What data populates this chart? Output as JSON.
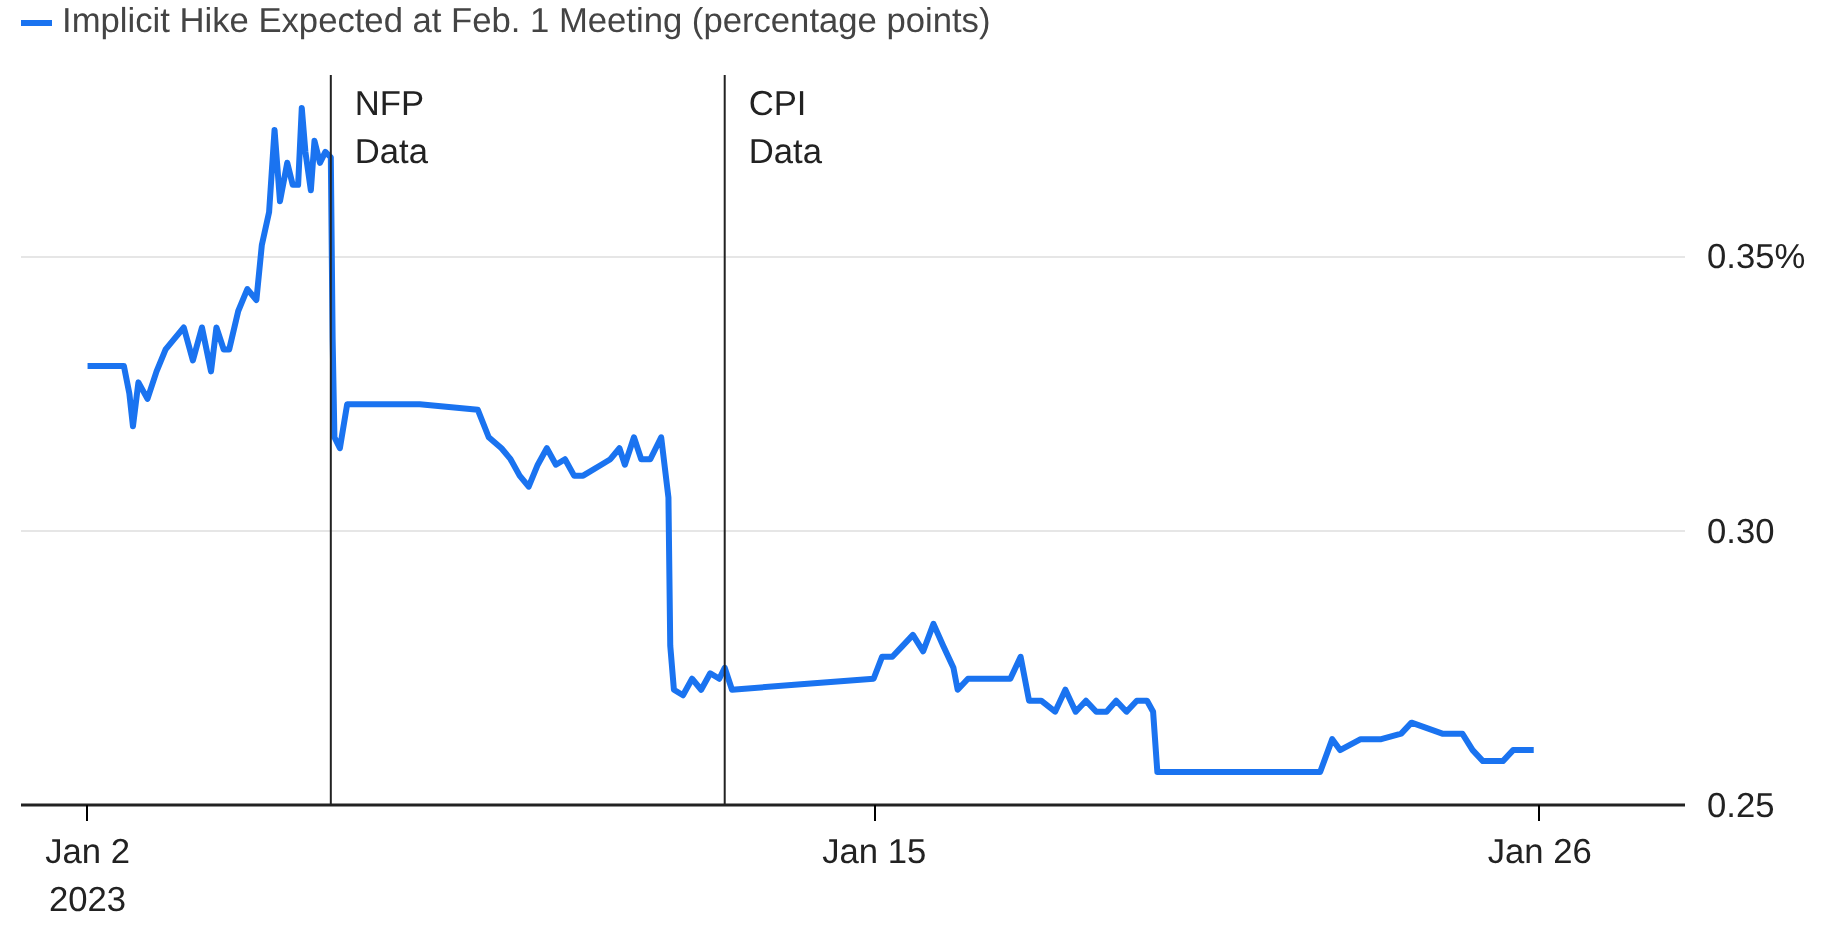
{
  "chart_data": {
    "type": "line",
    "xlim": [
      "2022-12-31T21:36",
      "2023-01-28T09:36"
    ],
    "ylim": [
      0.25,
      0.383
    ],
    "xticks": [
      {
        "value": "2023-01-02",
        "label": "Jan 2\n2023"
      },
      {
        "value": "2023-01-15",
        "label": "Jan 15"
      },
      {
        "value": "2023-01-26",
        "label": "Jan 26"
      }
    ],
    "yticks": [
      {
        "value": 0.25,
        "label": "0.25"
      },
      {
        "value": 0.3,
        "label": "0.30"
      },
      {
        "value": 0.35,
        "label": "0.35%"
      }
    ],
    "grid": "y",
    "legend": "top left",
    "line_style": "solid",
    "ref_lines": [
      {
        "axis": "x",
        "value": "2023-01-06T00:29",
        "label": "NFP\nData",
        "color": "#222222"
      },
      {
        "axis": "x",
        "value": "2023-01-12T12:43",
        "label": "CPI\nData",
        "color": "#222222"
      }
    ],
    "series": [
      {
        "name": "Implicit Hike Expected at Feb. 1 Meeting (percentage points)",
        "color": "#1a73f0",
        "x": [
          "2023-01-02T00:00",
          "2023-01-02T14:24",
          "2023-01-02T16:34",
          "2023-01-02T18:00",
          "2023-01-02T20:10",
          "2023-01-02T23:46",
          "2023-01-03T03:22",
          "2023-01-03T06:58",
          "2023-01-03T10:34",
          "2023-01-03T14:10",
          "2023-01-03T17:46",
          "2023-01-03T21:22",
          "2023-01-04T00:58",
          "2023-01-04T03:07",
          "2023-01-04T06:00",
          "2023-01-04T08:10",
          "2023-01-04T11:46",
          "2023-01-04T15:22",
          "2023-01-04T18:58",
          "2023-01-04T21:07",
          "2023-01-05T00:00",
          "2023-01-05T02:10",
          "2023-01-05T04:19",
          "2023-01-05T07:12",
          "2023-01-05T09:22",
          "2023-01-05T11:31",
          "2023-01-05T12:58",
          "2023-01-05T14:24",
          "2023-01-05T16:34",
          "2023-01-05T18:00",
          "2023-01-05T20:10",
          "2023-01-05T22:19",
          "2023-01-06T00:29",
          "2023-01-06T01:12",
          "2023-01-06T01:55",
          "2023-01-06T04:05",
          "2023-01-06T06:58",
          "2023-01-07T11:46",
          "2023-01-08T10:48",
          "2023-01-08T15:07",
          "2023-01-08T20:10",
          "2023-01-08T23:46",
          "2023-01-09T03:22",
          "2023-01-09T06:58",
          "2023-01-09T10:34",
          "2023-01-09T14:10",
          "2023-01-09T17:46",
          "2023-01-09T21:22",
          "2023-01-10T00:58",
          "2023-01-10T04:34",
          "2023-01-10T11:46",
          "2023-01-10T15:22",
          "2023-01-10T18:58",
          "2023-01-10T21:07",
          "2023-01-11T00:43",
          "2023-01-11T03:36",
          "2023-01-11T07:12",
          "2023-01-11T11:31",
          "2023-01-11T14:24",
          "2023-01-11T15:07",
          "2023-01-11T16:34",
          "2023-01-11T20:10",
          "2023-01-11T23:46",
          "2023-01-12T03:22",
          "2023-01-12T06:58",
          "2023-01-12T10:34",
          "2023-01-12T12:43",
          "2023-01-12T15:36",
          "2023-01-13T18:58",
          "2023-01-14T23:46",
          "2023-01-15T03:07",
          "2023-01-15T07:12",
          "2023-01-15T11:17",
          "2023-01-15T15:22",
          "2023-01-15T19:26",
          "2023-01-15T23:31",
          "2023-01-16T03:22",
          "2023-01-16T07:26",
          "2023-01-16T09:07",
          "2023-01-16T13:12",
          "2023-01-16T18:00",
          "2023-01-16T23:31",
          "2023-01-17T06:00",
          "2023-01-17T10:05",
          "2023-01-17T13:26",
          "2023-01-17T18:14",
          "2023-01-17T23:46",
          "2023-01-18T03:50",
          "2023-01-18T07:55",
          "2023-01-18T12:00",
          "2023-01-18T16:05",
          "2023-01-18T20:10",
          "2023-01-19T00:00",
          "2023-01-19T04:05",
          "2023-01-19T08:10",
          "2023-01-19T12:14",
          "2023-01-19T14:38",
          "2023-01-19T16:19",
          "2023-01-20T16:34",
          "2023-01-22T08:53",
          "2023-01-22T13:41",
          "2023-01-22T16:48",
          "2023-01-23T00:58",
          "2023-01-23T09:07",
          "2023-01-23T17:02",
          "2023-01-23T21:07",
          "2023-01-24T09:22",
          "2023-01-24T17:17",
          "2023-01-24T21:22",
          "2023-01-25T01:26",
          "2023-01-25T05:17",
          "2023-01-25T09:22",
          "2023-01-25T13:26",
          "2023-01-25T21:36"
        ],
        "values": [
          0.33,
          0.33,
          0.325,
          0.319,
          0.327,
          0.324,
          0.329,
          0.333,
          0.335,
          0.337,
          0.331,
          0.337,
          0.329,
          0.337,
          0.333,
          0.333,
          0.34,
          0.344,
          0.342,
          0.352,
          0.358,
          0.373,
          0.36,
          0.367,
          0.363,
          0.363,
          0.377,
          0.369,
          0.362,
          0.371,
          0.367,
          0.369,
          0.368,
          0.335,
          0.317,
          0.315,
          0.323,
          0.323,
          0.322,
          0.317,
          0.315,
          0.313,
          0.31,
          0.308,
          0.312,
          0.315,
          0.312,
          0.313,
          0.31,
          0.31,
          0.312,
          0.313,
          0.315,
          0.312,
          0.317,
          0.313,
          0.313,
          0.317,
          0.306,
          0.279,
          0.271,
          0.27,
          0.273,
          0.271,
          0.274,
          0.273,
          0.275,
          0.271,
          0.272,
          0.273,
          0.277,
          0.277,
          0.279,
          0.281,
          0.278,
          0.283,
          0.279,
          0.275,
          0.271,
          0.273,
          0.273,
          0.273,
          0.273,
          0.277,
          0.269,
          0.269,
          0.267,
          0.271,
          0.267,
          0.269,
          0.267,
          0.267,
          0.269,
          0.267,
          0.269,
          0.269,
          0.267,
          0.256,
          0.256,
          0.256,
          0.262,
          0.26,
          0.262,
          0.262,
          0.263,
          0.265,
          0.263,
          0.263,
          0.26,
          0.258,
          0.258,
          0.258,
          0.26,
          0.26
        ]
      }
    ]
  }
}
